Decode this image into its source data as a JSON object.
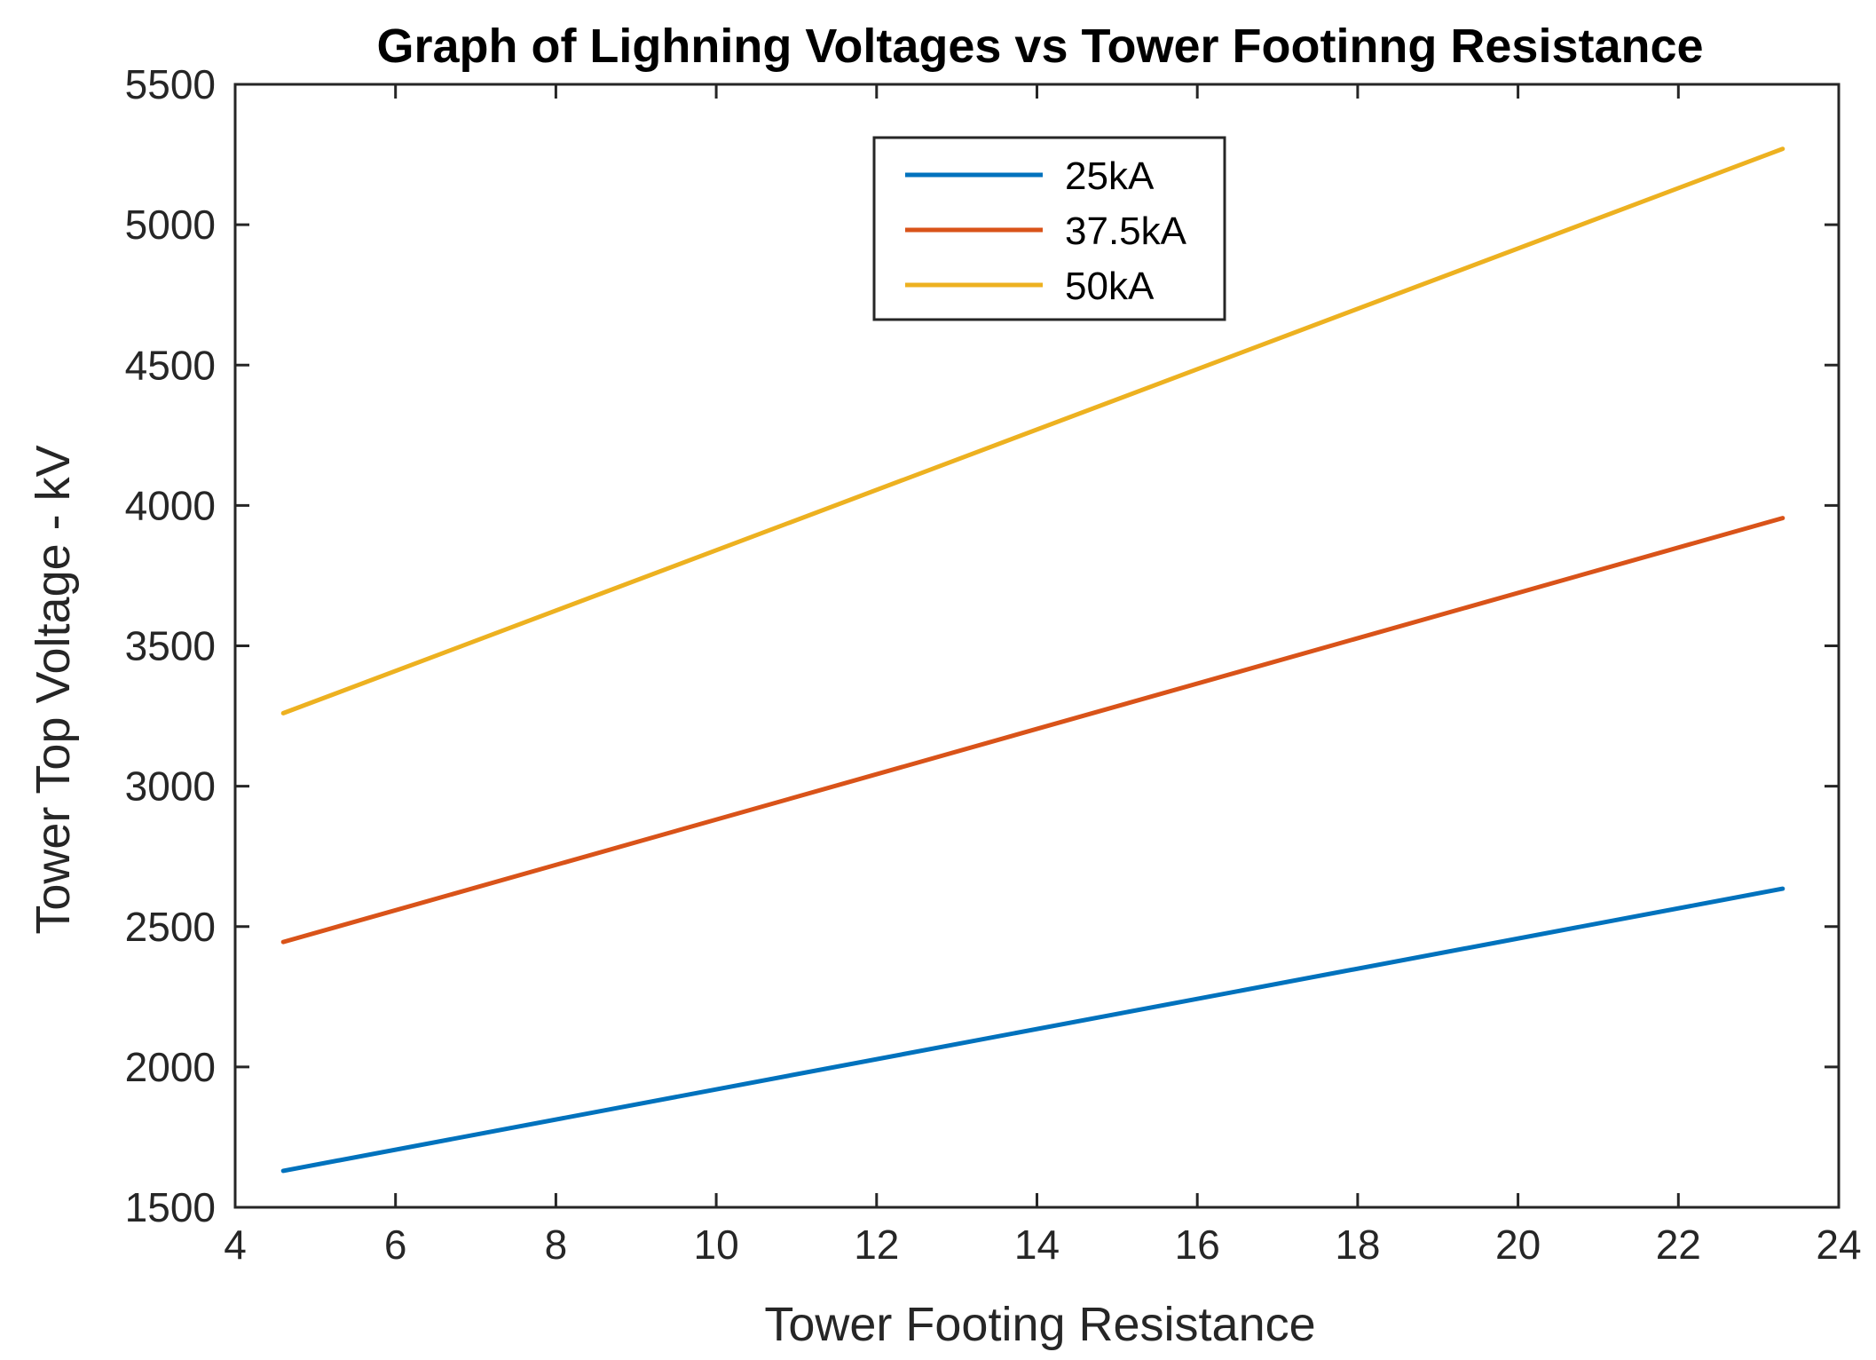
{
  "chart_data": {
    "type": "line",
    "title": "Graph of Lighning Voltages vs Tower Footinng Resistance",
    "xlabel": "Tower Footing Resistance",
    "ylabel": "Tower Top Voltage - kV",
    "xlim": [
      4,
      24
    ],
    "ylim": [
      1500,
      5500
    ],
    "xticks": [
      4,
      6,
      8,
      10,
      12,
      14,
      16,
      18,
      20,
      22,
      24
    ],
    "yticks": [
      1500,
      2000,
      2500,
      3000,
      3500,
      4000,
      4500,
      5000,
      5500
    ],
    "grid": false,
    "legend_position": "top-center",
    "x": [
      4.6,
      23.3
    ],
    "series": [
      {
        "name": "25kA",
        "color": "#0072BD",
        "values": [
          1630,
          2635
        ]
      },
      {
        "name": "37.5kA",
        "color": "#D95319",
        "values": [
          2445,
          3955
        ]
      },
      {
        "name": "50kA",
        "color": "#EDB120",
        "values": [
          3260,
          5270
        ]
      }
    ]
  }
}
